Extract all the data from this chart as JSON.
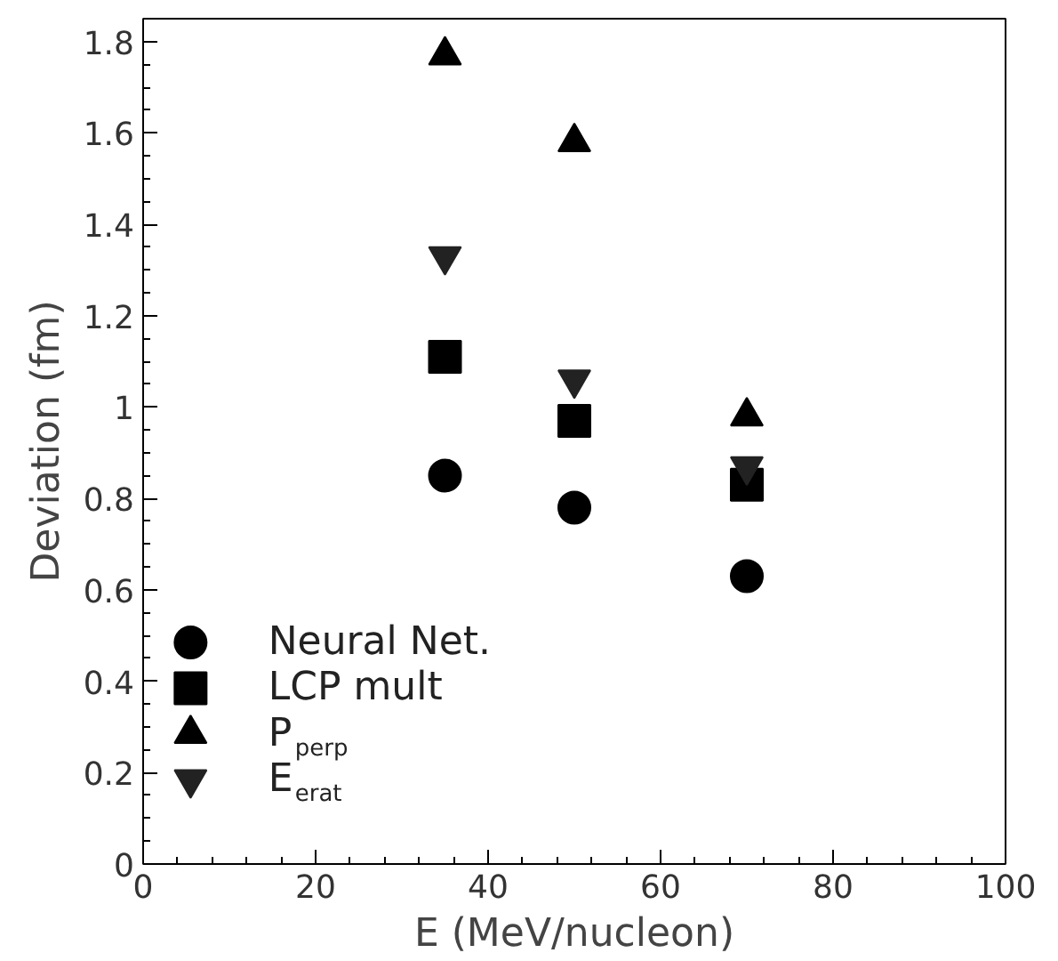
{
  "chart_data": {
    "type": "scatter",
    "xlabel": "E (MeV/nucleon)",
    "ylabel": "Deviation (fm)",
    "x": [
      35,
      50,
      70
    ],
    "series": [
      {
        "name": "Neural Net.",
        "color": "#000000",
        "marker": "circle",
        "values": [
          0.85,
          0.78,
          0.63
        ]
      },
      {
        "name": "LCP mult",
        "color": "#000000",
        "marker": "square",
        "values": [
          1.11,
          0.97,
          0.83
        ]
      },
      {
        "name": "P$_{perp}$",
        "color": "#000000",
        "marker": "triangle",
        "values": [
          1.77,
          1.58,
          0.98
        ]
      },
      {
        "name": "E$_{erat}$",
        "color": "#222222",
        "values": [
          1.33,
          1.06,
          0.87
        ]
      }
    ],
    "xlim": [
      0,
      100
    ],
    "ylim": [
      0,
      1.85
    ],
    "xticks": [
      0,
      20,
      40,
      60,
      80,
      100
    ],
    "yticks": [
      0,
      0.2,
      0.4,
      0.6,
      0.8,
      1,
      1.2,
      1.4,
      1.6,
      1.8
    ],
    "grid": false,
    "legend": "bottom left"
  }
}
